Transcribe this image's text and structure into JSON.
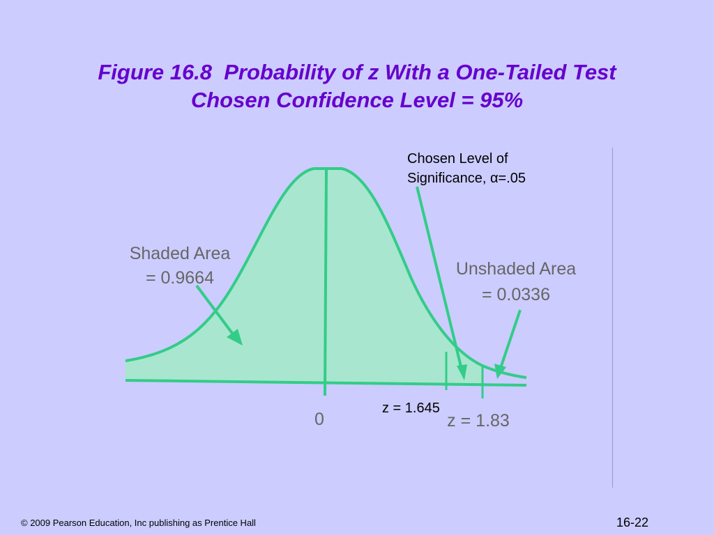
{
  "slide": {
    "title_line1": "Figure 16.8  Probability of z With a One-Tailed Test",
    "title_line2": "Chosen Confidence Level = 95%",
    "footer_copyright": "© 2009 Pearson Education, Inc publishing as Prentice Hall",
    "page_number": "16-22"
  },
  "figure": {
    "significance_line1": "Chosen Level of",
    "significance_line2": "Significance, α=.05",
    "shaded_line1": "Shaded Area",
    "shaded_line2": "= 0.9664",
    "unshaded_line1": "Unshaded Area",
    "unshaded_line2": "= 0.0336",
    "zero_label": "0",
    "z_critical_label": "z = 1.645",
    "z_observed_label": "z = 1.83"
  },
  "colors": {
    "background": "#ccccff",
    "title": "#6600cc",
    "curve": "#33cc88",
    "fill": "#a8e6cf"
  }
}
